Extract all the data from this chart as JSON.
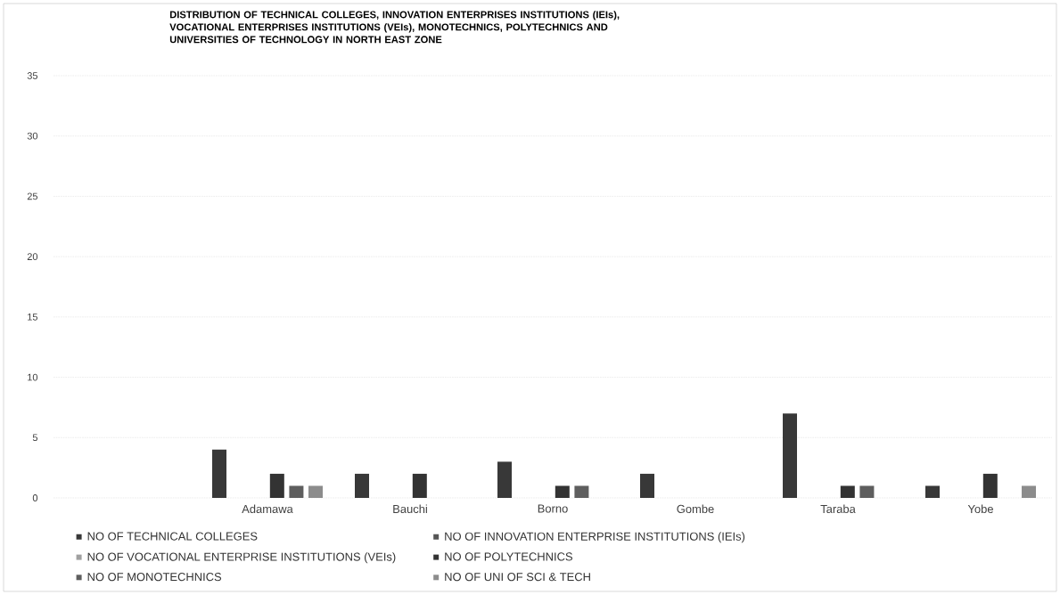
{
  "chart_data": {
    "type": "bar",
    "title": "DISTRIBUTION OF TECHNICAL COLLEGES, INNOVATION ENTERPRISES INSTITUTIONS (IEIs), VOCATIONAL ENTERPRISES INSTITUTIONS (VEIs), MONOTECHNICS, POLYTECHNICS AND UNIVERSITIES OF TECHNOLOGY IN NORTH EAST ZONE",
    "categories": [
      null,
      "Adamawa",
      "Bauchi",
      "Borno",
      "Gombe",
      "Taraba",
      "Yobe"
    ],
    "series": [
      {
        "name": "NO OF TECHNICAL COLLEGES",
        "color": "#383838",
        "values": [
          0,
          4,
          2,
          3,
          2,
          7,
          1
        ]
      },
      {
        "name": "NO OF INNOVATION ENTERPRISE INSTITUTIONS (IEIs)",
        "color": "#555555",
        "values": [
          0,
          0,
          0,
          0,
          0,
          0,
          0
        ]
      },
      {
        "name": "NO OF VOCATIONAL  ENTERPRISE INSTITUTIONS (VEIs)",
        "color": "#a0a0a0",
        "values": [
          0,
          0,
          0,
          0,
          0,
          0,
          0
        ]
      },
      {
        "name": "NO OF POLYTECHNICS",
        "color": "#333333",
        "values": [
          0,
          2,
          2,
          1,
          0,
          1,
          2
        ]
      },
      {
        "name": "NO OF MONOTECHNICS",
        "color": "#5e5e5e",
        "values": [
          0,
          1,
          0,
          1,
          0,
          1,
          0
        ]
      },
      {
        "name": "NO OF UNI OF SCI & TECH",
        "color": "#8c8c8c",
        "values": [
          0,
          1,
          0,
          0,
          0,
          0,
          1
        ]
      }
    ],
    "ylim": [
      0,
      35
    ],
    "yticks": [
      0,
      5,
      10,
      15,
      20,
      25,
      30,
      35
    ],
    "grid": "y",
    "legend": "bottom"
  }
}
